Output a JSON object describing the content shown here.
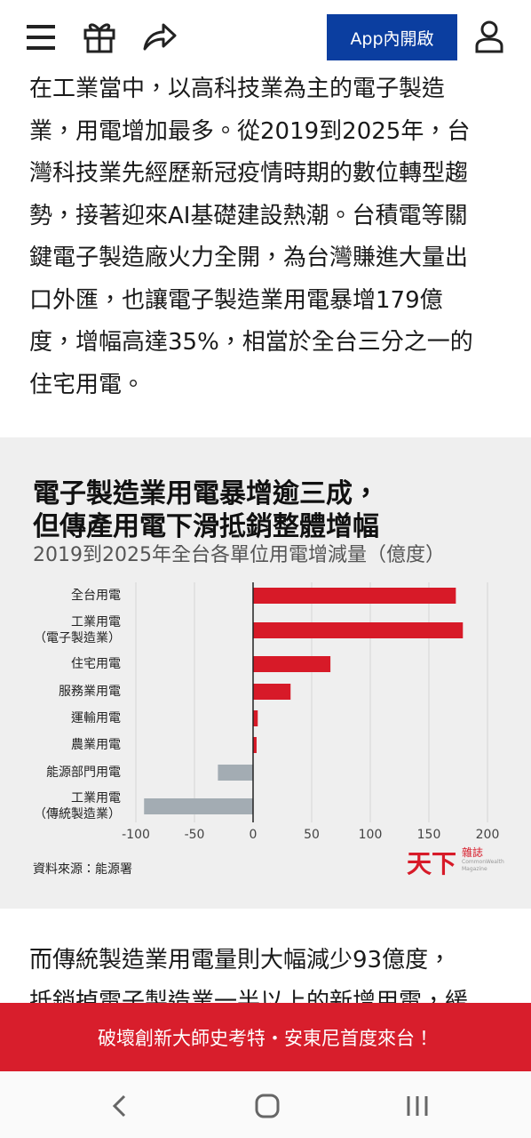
{
  "header": {
    "app_button": "App內開啟"
  },
  "article": {
    "before": [
      "在工業當中，以高科技業為主的電子製造",
      "業，用電增加最多。從2019到2025年，台",
      "灣科技業先經歷新冠疫情時期的數位轉型趨",
      "勢，接著迎來AI基礎建設熱潮。台積電等關",
      "鍵電子製造廠火力全開，為台灣賺進大量出",
      "口外匯，也讓電子製造業用電暴增179億",
      "度，增幅高達35%，相當於全台三分之一的",
      "住宅用電。"
    ],
    "after": [
      "而傳統製造業用電量則大幅減少93億度，",
      "抵銷掉電子製造業一半以上的新增用電，緩"
    ]
  },
  "chart_data": {
    "type": "bar",
    "orientation": "horizontal",
    "title": [
      "電子製造業用電暴增逾三成，",
      "但傳產用電下滑抵銷整體增幅"
    ],
    "subtitle": "2019到2025年全台各單位用電增減量（億度）",
    "categories": [
      "全台用電",
      "工業用電\n（電子製造業）",
      "住宅用電",
      "服務業用電",
      "運輸用電",
      "農業用電",
      "能源部門用電",
      "工業用電\n（傳統製造業）"
    ],
    "values": [
      173,
      179,
      66,
      32,
      4,
      3,
      -30,
      -93
    ],
    "colors": [
      "#d71a28",
      "#d71a28",
      "#d71a28",
      "#d71a28",
      "#d71a28",
      "#d71a28",
      "#a3acb3",
      "#a3acb3"
    ],
    "xlim": [
      -100,
      200
    ],
    "xticks": [
      -100,
      -50,
      0,
      50,
      100,
      150,
      200
    ],
    "grid": true,
    "source": "資料來源：能源署",
    "logo": {
      "name": "天下",
      "sub": "雜誌",
      "caption": "CommonWealth Magazine"
    }
  },
  "banner": {
    "text": "破壞創新大師史考特・安東尼首度來台！"
  }
}
